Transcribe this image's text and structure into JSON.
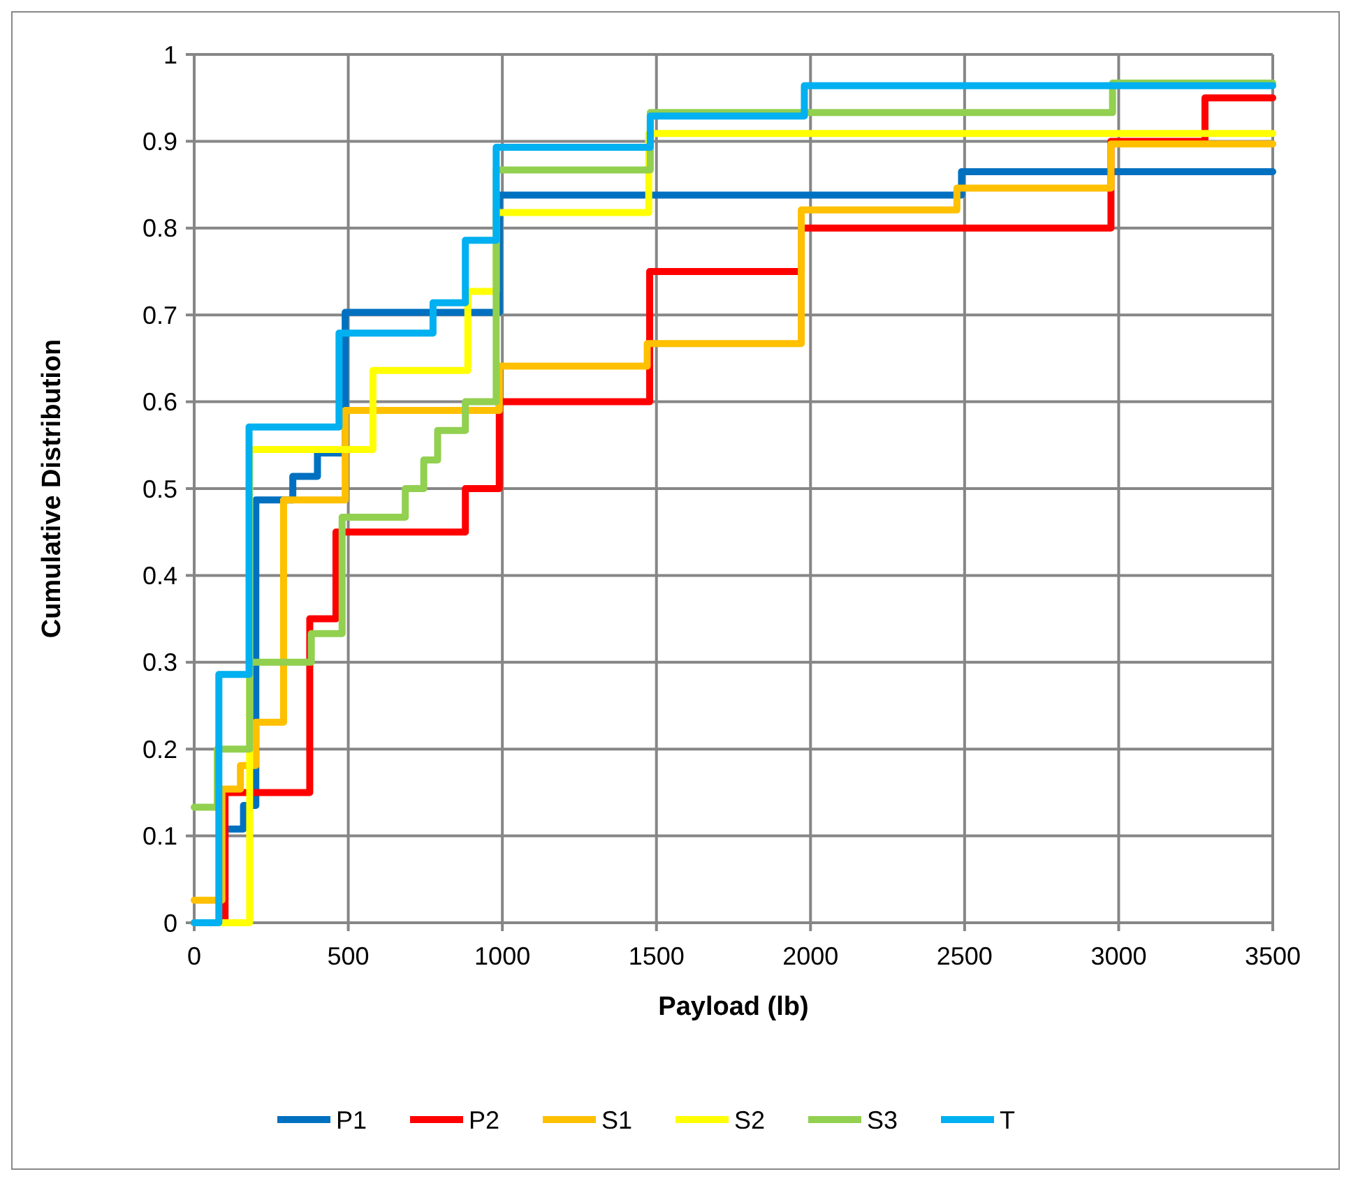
{
  "chart_data": {
    "type": "step",
    "xlabel": "Payload (lb)",
    "ylabel": "Cumulative Distribution",
    "xlim": [
      0,
      3500
    ],
    "ylim": [
      0,
      1
    ],
    "xticks": [
      0,
      500,
      1000,
      1500,
      2000,
      2500,
      3000,
      3500
    ],
    "yticks": [
      0,
      0.1,
      0.2,
      0.3,
      0.4,
      0.5,
      0.6,
      0.7,
      0.8,
      0.9,
      1
    ],
    "grid": true,
    "legend": "bottom",
    "line_style": "solid",
    "marker": "none",
    "series": [
      {
        "name": "P1",
        "color": "#0070c0",
        "x": [
          0,
          100,
          160,
          200,
          320,
          400,
          490,
          990,
          2490,
          3500
        ],
        "values": [
          0,
          0.108,
          0.135,
          0.487,
          0.514,
          0.541,
          0.703,
          0.838,
          0.865,
          0.865
        ]
      },
      {
        "name": "P2",
        "color": "#ff0000",
        "x": [
          0,
          100,
          375,
          460,
          880,
          990,
          1478,
          1970,
          2975,
          3280,
          3500
        ],
        "values": [
          0,
          0.15,
          0.35,
          0.45,
          0.5,
          0.6,
          0.75,
          0.8,
          0.9,
          0.95,
          0.95
        ]
      },
      {
        "name": "S1",
        "color": "#ffc000",
        "x": [
          0,
          90,
          150,
          200,
          290,
          490,
          990,
          1470,
          1970,
          2475,
          2975,
          3500
        ],
        "values": [
          0.026,
          0.154,
          0.181,
          0.231,
          0.487,
          0.59,
          0.641,
          0.667,
          0.821,
          0.846,
          0.897,
          0.897
        ]
      },
      {
        "name": "S2",
        "color": "#ffff00",
        "x": [
          0,
          180,
          580,
          888,
          980,
          1475,
          3500
        ],
        "values": [
          0,
          0.545,
          0.636,
          0.727,
          0.818,
          0.909,
          0.909
        ]
      },
      {
        "name": "S3",
        "color": "#92d050",
        "x": [
          0,
          75,
          180,
          380,
          480,
          685,
          745,
          790,
          880,
          980,
          1480,
          2980,
          3500
        ],
        "values": [
          0.133,
          0.2,
          0.3,
          0.333,
          0.467,
          0.5,
          0.533,
          0.567,
          0.6,
          0.867,
          0.933,
          0.967,
          0.967
        ]
      },
      {
        "name": "T",
        "color": "#00b0f0",
        "x": [
          0,
          80,
          178,
          470,
          775,
          880,
          980,
          1480,
          1980,
          3500
        ],
        "values": [
          0,
          0.286,
          0.571,
          0.679,
          0.714,
          0.786,
          0.893,
          0.929,
          0.964,
          0.964
        ]
      }
    ]
  }
}
